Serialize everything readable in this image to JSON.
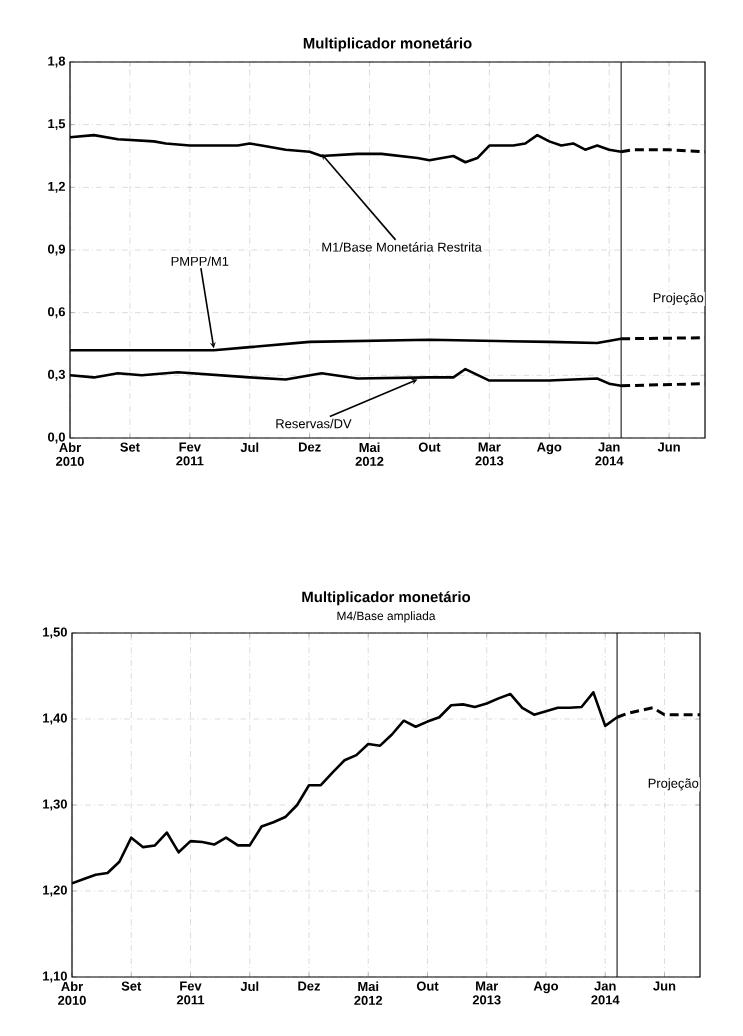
{
  "chart_data": [
    {
      "type": "line",
      "title": "Multiplicador monetário",
      "xlim": [
        "2010-04",
        "2014-09"
      ],
      "ylim": [
        0,
        1.8
      ],
      "xticks": [
        {
          "value": "2010-04",
          "label": "Abr 2010"
        },
        {
          "value": "2010-09",
          "label": "Set"
        },
        {
          "value": "2011-02",
          "label": "Fev 2011"
        },
        {
          "value": "2011-07",
          "label": "Jul"
        },
        {
          "value": "2011-12",
          "label": "Dez"
        },
        {
          "value": "2012-05",
          "label": "Mai 2012"
        },
        {
          "value": "2012-10",
          "label": "Out"
        },
        {
          "value": "2013-03",
          "label": "Mar 2013"
        },
        {
          "value": "2013-08",
          "label": "Ago"
        },
        {
          "value": "2014-01",
          "label": "Jan 2014"
        },
        {
          "value": "2014-06",
          "label": "Jun"
        }
      ],
      "yticks": [
        {
          "value": 0,
          "label": "0,0"
        },
        {
          "value": 0.3,
          "label": "0,3"
        },
        {
          "value": 0.6,
          "label": "0,6"
        },
        {
          "value": 0.9,
          "label": "0,9"
        },
        {
          "value": 1.2,
          "label": "1,2"
        },
        {
          "value": 1.5,
          "label": "1,5"
        },
        {
          "value": 1.8,
          "label": "1,8"
        }
      ],
      "grid": true,
      "series": [
        {
          "color": "#000000",
          "line_style": "solid",
          "x": [
            "2010-04",
            "2010-06",
            "2010-08",
            "2010-11",
            "2010-12",
            "2011-02",
            "2011-06",
            "2011-07",
            "2011-08",
            "2011-10",
            "2011-12",
            "2012-01",
            "2012-04",
            "2012-06",
            "2012-09",
            "2012-10",
            "2012-12",
            "2013-01",
            "2013-02",
            "2013-03",
            "2013-05",
            "2013-06",
            "2013-07",
            "2013-08",
            "2013-09",
            "2013-10",
            "2013-11",
            "2013-12",
            "2014-01",
            "2014-02"
          ],
          "values": [
            1.44,
            1.45,
            1.43,
            1.42,
            1.41,
            1.4,
            1.4,
            1.41,
            1.4,
            1.38,
            1.37,
            1.35,
            1.36,
            1.36,
            1.34,
            1.33,
            1.35,
            1.32,
            1.34,
            1.4,
            1.4,
            1.41,
            1.45,
            1.42,
            1.4,
            1.41,
            1.38,
            1.4,
            1.38,
            1.37
          ]
        },
        {
          "color": "#000000",
          "line_style": "dashed",
          "x": [
            "2014-02",
            "2014-03",
            "2014-06",
            "2014-09"
          ],
          "values": [
            1.37,
            1.38,
            1.38,
            1.37
          ]
        },
        {
          "color": "#000000",
          "line_style": "solid",
          "x": [
            "2010-04",
            "2011-04",
            "2011-07",
            "2011-12",
            "2012-10",
            "2013-08",
            "2013-12",
            "2014-02"
          ],
          "values": [
            0.42,
            0.42,
            0.435,
            0.46,
            0.47,
            0.46,
            0.455,
            0.475
          ]
        },
        {
          "color": "#000000",
          "line_style": "dashed",
          "x": [
            "2014-02",
            "2014-09"
          ],
          "values": [
            0.475,
            0.48
          ]
        },
        {
          "color": "#000000",
          "line_style": "solid",
          "x": [
            "2010-04",
            "2010-06",
            "2010-08",
            "2010-10",
            "2011-01",
            "2011-07",
            "2011-10",
            "2012-01",
            "2012-04",
            "2012-10",
            "2012-12",
            "2013-01",
            "2013-03",
            "2013-08",
            "2013-12",
            "2014-01",
            "2014-02"
          ],
          "values": [
            0.3,
            0.29,
            0.31,
            0.3,
            0.315,
            0.29,
            0.28,
            0.31,
            0.285,
            0.29,
            0.29,
            0.33,
            0.275,
            0.275,
            0.285,
            0.26,
            0.25
          ]
        },
        {
          "color": "#000000",
          "line_style": "dashed",
          "x": [
            "2014-02",
            "2014-09"
          ],
          "values": [
            0.25,
            0.26
          ]
        }
      ],
      "ref_lines": [
        {
          "axis": "x",
          "value": "2014-02",
          "label": "Projeção"
        }
      ],
      "annotations": [
        {
          "text": "M1/Base Monetária Restrita",
          "x": "2012-01",
          "y": 1.36
        },
        {
          "text": "PMPP/M1",
          "x": "2011-04",
          "y": 0.43
        },
        {
          "text": "Reservas/DV",
          "x": "2012-09",
          "y": 0.28
        }
      ]
    },
    {
      "type": "line",
      "title": "Multiplicador monetário",
      "subtitle": "M4/Base ampliada",
      "xlim": [
        "2010-04",
        "2014-09"
      ],
      "ylim": [
        1.1,
        1.5
      ],
      "xticks": [
        {
          "value": "2010-04",
          "label": "Abr 2010"
        },
        {
          "value": "2010-09",
          "label": "Set"
        },
        {
          "value": "2011-02",
          "label": "Fev 2011"
        },
        {
          "value": "2011-07",
          "label": "Jul"
        },
        {
          "value": "2011-12",
          "label": "Dez"
        },
        {
          "value": "2012-05",
          "label": "Mai 2012"
        },
        {
          "value": "2012-10",
          "label": "Out"
        },
        {
          "value": "2013-03",
          "label": "Mar 2013"
        },
        {
          "value": "2013-08",
          "label": "Ago"
        },
        {
          "value": "2014-01",
          "label": "Jan 2014"
        },
        {
          "value": "2014-06",
          "label": "Jun"
        }
      ],
      "yticks": [
        {
          "value": 1.1,
          "label": "1,10"
        },
        {
          "value": 1.2,
          "label": "1,20"
        },
        {
          "value": 1.3,
          "label": "1,30"
        },
        {
          "value": 1.4,
          "label": "1,40"
        },
        {
          "value": 1.5,
          "label": "1,50"
        }
      ],
      "grid": true,
      "series": [
        {
          "color": "#000000",
          "line_style": "solid",
          "x": [
            "2010-04",
            "2010-05",
            "2010-06",
            "2010-07",
            "2010-08",
            "2010-09",
            "2010-10",
            "2010-11",
            "2010-12",
            "2011-01",
            "2011-02",
            "2011-03",
            "2011-04",
            "2011-05",
            "2011-06",
            "2011-07",
            "2011-08",
            "2011-09",
            "2011-10",
            "2011-11",
            "2011-12",
            "2012-01",
            "2012-02",
            "2012-03",
            "2012-04",
            "2012-05",
            "2012-06",
            "2012-07",
            "2012-08",
            "2012-09",
            "2012-10",
            "2012-11",
            "2012-12",
            "2013-01",
            "2013-02",
            "2013-03",
            "2013-04",
            "2013-05",
            "2013-06",
            "2013-07",
            "2013-08",
            "2013-09",
            "2013-10",
            "2013-11",
            "2013-12",
            "2014-01",
            "2014-02"
          ],
          "values": [
            1.209,
            1.214,
            1.219,
            1.221,
            1.234,
            1.262,
            1.251,
            1.253,
            1.268,
            1.245,
            1.258,
            1.257,
            1.254,
            1.262,
            1.253,
            1.253,
            1.275,
            1.28,
            1.286,
            1.3,
            1.323,
            1.323,
            1.338,
            1.352,
            1.358,
            1.371,
            1.369,
            1.382,
            1.398,
            1.391,
            1.397,
            1.402,
            1.416,
            1.417,
            1.414,
            1.418,
            1.424,
            1.429,
            1.413,
            1.405,
            1.409,
            1.413,
            1.413,
            1.414,
            1.431,
            1.392,
            1.402
          ]
        },
        {
          "color": "#000000",
          "line_style": "dashed",
          "x": [
            "2014-02",
            "2014-03",
            "2014-05",
            "2014-06",
            "2014-09"
          ],
          "values": [
            1.402,
            1.407,
            1.413,
            1.405,
            1.405
          ]
        }
      ],
      "ref_lines": [
        {
          "axis": "x",
          "value": "2014-02",
          "label": "Projeção"
        }
      ]
    }
  ]
}
